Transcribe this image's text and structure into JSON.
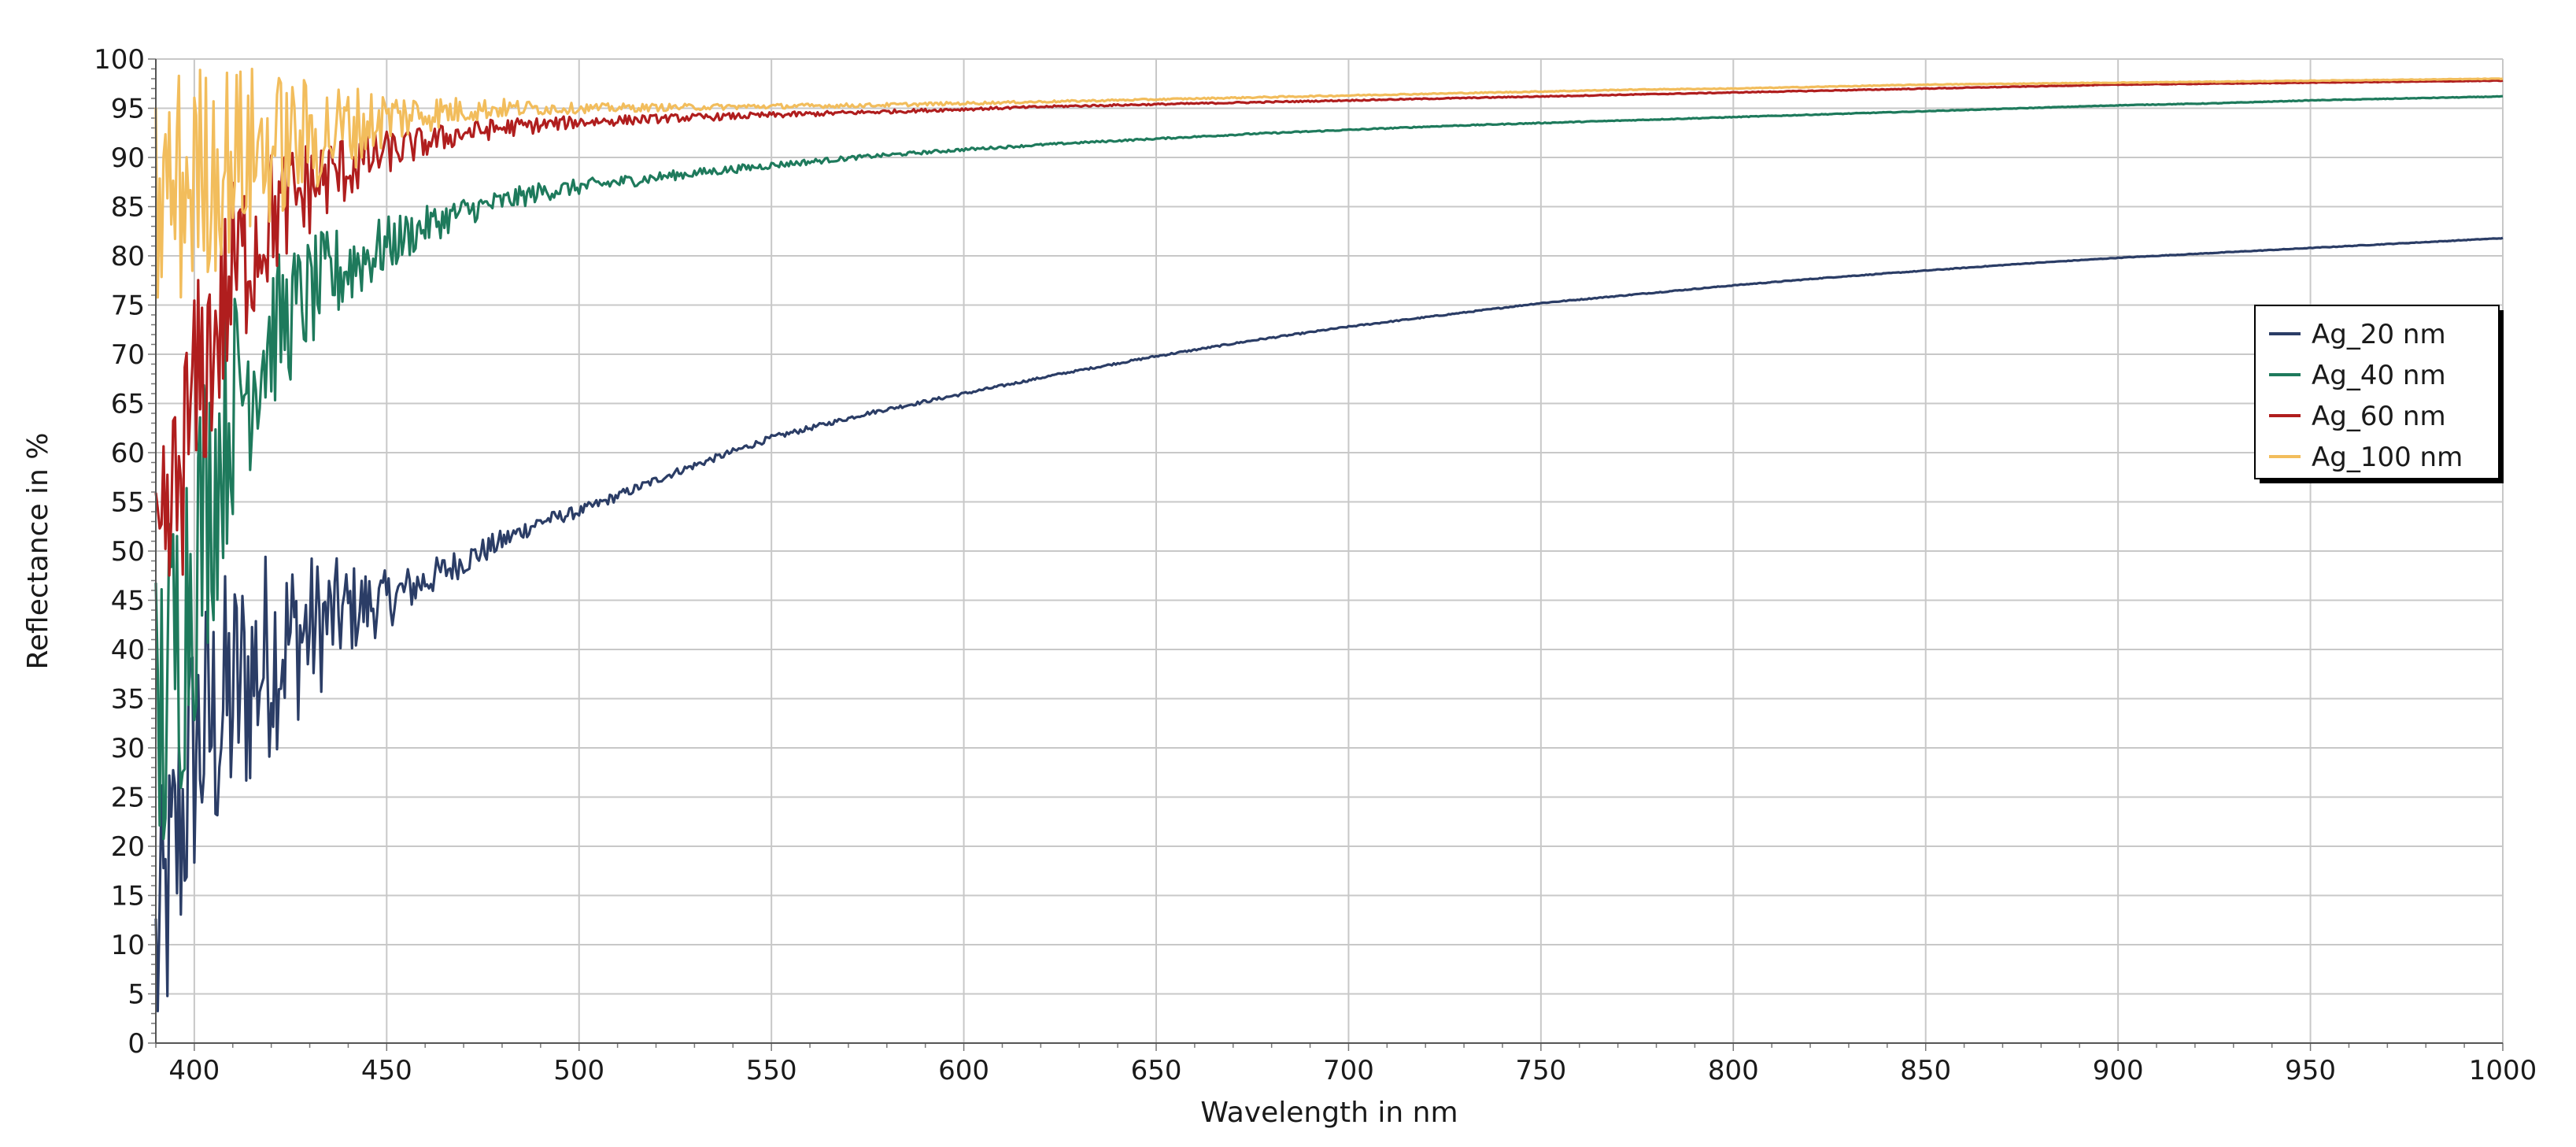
{
  "chart_data": {
    "type": "line",
    "title": "",
    "xlabel": "Wavelength in nm",
    "ylabel": "Reflectance in %",
    "xlim": [
      390,
      1000
    ],
    "ylim": [
      0,
      100
    ],
    "x_ticks": [
      400,
      450,
      500,
      550,
      600,
      650,
      700,
      750,
      800,
      850,
      900,
      950,
      1000
    ],
    "y_ticks": [
      0,
      5,
      10,
      15,
      20,
      25,
      30,
      35,
      40,
      45,
      50,
      55,
      60,
      65,
      70,
      75,
      80,
      85,
      90,
      95,
      100
    ],
    "grid": true,
    "legend_position": "right",
    "x": [
      390,
      400,
      410,
      420,
      430,
      440,
      450,
      460,
      470,
      480,
      490,
      500,
      525,
      550,
      575,
      600,
      625,
      650,
      675,
      700,
      725,
      750,
      775,
      800,
      825,
      850,
      875,
      900,
      925,
      950,
      975,
      1000
    ],
    "series": [
      {
        "name": "Ag_20 nm",
        "color": "#2b3d66",
        "values": [
          8,
          30,
          35,
          40,
          42,
          44,
          45,
          47,
          49,
          51,
          53,
          54,
          58,
          61.5,
          64,
          66,
          68,
          69.8,
          71.4,
          72.8,
          74.0,
          75.2,
          76.1,
          77.0,
          77.8,
          78.5,
          79.2,
          79.8,
          80.3,
          80.8,
          81.3,
          81.8
        ],
        "noise": [
          15,
          15,
          14,
          11,
          8,
          5,
          3,
          2,
          1.5,
          1.2,
          0.8,
          0.6,
          0.4,
          0.3,
          0.2,
          0.15,
          0.1,
          0.1,
          0.08,
          0.07,
          0.06,
          0.05,
          0.05,
          0.04,
          0.04,
          0.04,
          0.03,
          0.03,
          0.03,
          0.03,
          0.03,
          0.03
        ]
      },
      {
        "name": "Ag_40 nm",
        "color": "#1e7a5c",
        "values": [
          30,
          50,
          65,
          72,
          76,
          79,
          81,
          83,
          84.5,
          85.5,
          86.5,
          87,
          88.2,
          89.2,
          90.1,
          90.8,
          91.4,
          91.9,
          92.4,
          92.8,
          93.2,
          93.5,
          93.8,
          94.1,
          94.4,
          94.7,
          95.0,
          95.3,
          95.5,
          95.8,
          96.0,
          96.2
        ],
        "noise": [
          20,
          18,
          12,
          8,
          6,
          4.5,
          3,
          2,
          1.5,
          1.2,
          1,
          0.8,
          0.5,
          0.35,
          0.2,
          0.15,
          0.1,
          0.08,
          0.07,
          0.06,
          0.05,
          0.05,
          0.04,
          0.04,
          0.04,
          0.03,
          0.03,
          0.03,
          0.03,
          0.03,
          0.03,
          0.03
        ]
      },
      {
        "name": "Ag_60 nm",
        "color": "#b01e1e",
        "values": [
          45,
          65,
          78,
          84,
          87,
          89,
          90.5,
          91.5,
          92.5,
          93,
          93.3,
          93.6,
          94.0,
          94.3,
          94.6,
          94.9,
          95.2,
          95.4,
          95.6,
          95.8,
          96.0,
          96.2,
          96.4,
          96.6,
          96.8,
          97.0,
          97.2,
          97.4,
          97.5,
          97.6,
          97.7,
          97.8
        ],
        "noise": [
          12,
          12,
          10,
          7,
          5,
          3.5,
          2.2,
          1.6,
          1.2,
          1,
          0.8,
          0.6,
          0.4,
          0.3,
          0.2,
          0.15,
          0.1,
          0.08,
          0.07,
          0.06,
          0.05,
          0.05,
          0.04,
          0.04,
          0.04,
          0.04,
          0.03,
          0.03,
          0.03,
          0.03,
          0.03,
          0.03
        ]
      },
      {
        "name": "Ag_100 nm",
        "color": "#f2bd5c",
        "values": [
          85,
          88,
          90,
          91,
          92,
          93,
          94,
          94.5,
          94.8,
          95,
          95,
          95,
          95.1,
          95.2,
          95.3,
          95.5,
          95.7,
          95.9,
          96.1,
          96.3,
          96.5,
          96.7,
          96.9,
          97.0,
          97.2,
          97.4,
          97.5,
          97.6,
          97.7,
          97.8,
          97.9,
          98.0
        ],
        "noise": [
          14,
          12,
          10,
          8,
          6,
          4.5,
          3,
          2,
          1.3,
          1,
          0.7,
          0.5,
          0.35,
          0.25,
          0.2,
          0.15,
          0.1,
          0.08,
          0.07,
          0.06,
          0.05,
          0.05,
          0.04,
          0.04,
          0.04,
          0.04,
          0.03,
          0.03,
          0.03,
          0.03,
          0.03,
          0.03
        ]
      }
    ]
  }
}
